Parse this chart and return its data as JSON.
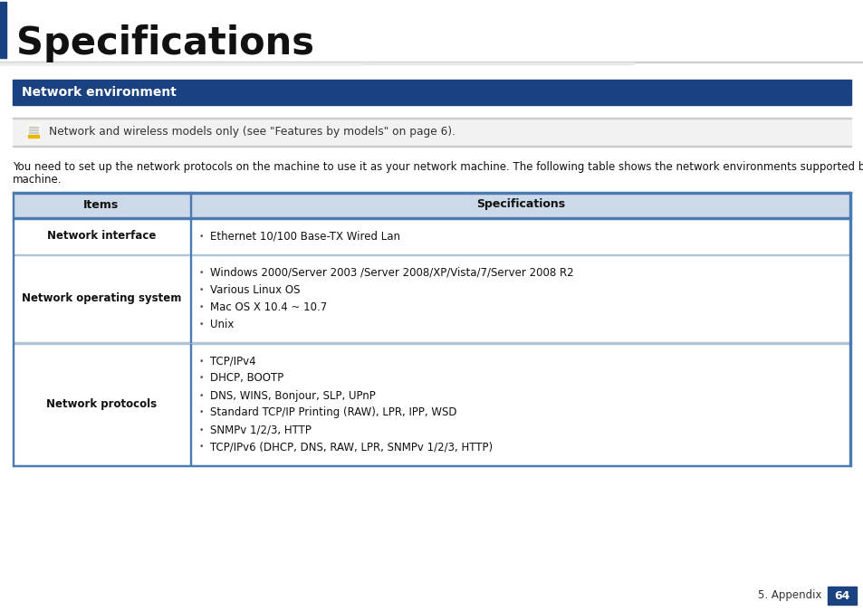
{
  "title": "Specifications",
  "section_header": "Network environment",
  "section_header_bg": "#1b4280",
  "section_header_color": "#ffffff",
  "note_text": "Network and wireless models only (see \"Features by models\" on page 6).",
  "note_bg": "#f2f2f2",
  "body_line1": "You need to set up the network protocols on the machine to use it as your network machine. The following table shows the network environments supported by the",
  "body_line2": "machine.",
  "table_header_bg": "#ccd9e8",
  "table_col1_header": "Items",
  "table_col2_header": "Specifications",
  "table_border_top_color": "#4a7ab0",
  "table_divider_color": "#4a7ab0",
  "table_row_line_color": "#b0c4d8",
  "table_rows": [
    {
      "col1": "Network interface",
      "col2_items": [
        "Ethernet 10/100 Base-TX Wired Lan"
      ]
    },
    {
      "col1": "Network operating system",
      "col2_items": [
        "Windows 2000/Server 2003 /Server 2008/XP/Vista/7/Server 2008 R2",
        "Various Linux OS",
        "Mac OS X 10.4 ~ 10.7",
        "Unix"
      ]
    },
    {
      "col1": "Network protocols",
      "col2_items": [
        "TCP/IPv4",
        "DHCP, BOOTP",
        "DNS, WINS, Bonjour, SLP, UPnP",
        "Standard TCP/IP Printing (RAW), LPR, IPP, WSD",
        "SNMPv 1/2/3, HTTP",
        "TCP/IPv6 (DHCP, DNS, RAW, LPR, SNMPv 1/2/3, HTTP)"
      ]
    }
  ],
  "footer_text": "5. Appendix",
  "footer_page": "64",
  "footer_bg": "#1b4280",
  "footer_text_color": "#ffffff",
  "bg_color": "#ffffff",
  "title_bar_color": "#1b4280",
  "divider_color": "#cccccc"
}
